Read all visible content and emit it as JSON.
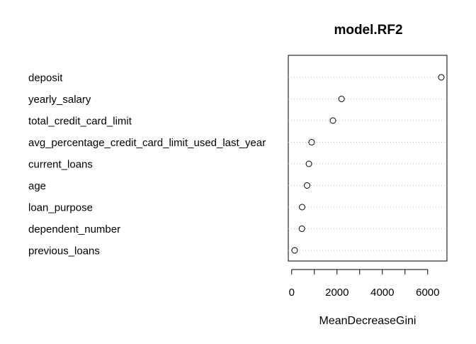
{
  "chart_data": {
    "type": "scatter",
    "title": "model.RF2",
    "xlabel": "MeanDecreaseGini",
    "ylabel": "",
    "xlim": [
      -150,
      6850
    ],
    "x_ticks": [
      0,
      1000,
      2000,
      3000,
      4000,
      5000,
      6000
    ],
    "x_tick_labels": [
      "0",
      "",
      "2000",
      "",
      "4000",
      "",
      "6000"
    ],
    "grid": "dotted horizontal guide per variable",
    "categories": [
      "deposit",
      "yearly_salary",
      "total_credit_card_limit",
      "avg_percentage_credit_card_limit_used_last_year",
      "current_loans",
      "age",
      "loan_purpose",
      "dependent_number",
      "previous_loans"
    ],
    "values": [
      6600,
      2200,
      1820,
      880,
      760,
      680,
      460,
      450,
      130
    ]
  }
}
